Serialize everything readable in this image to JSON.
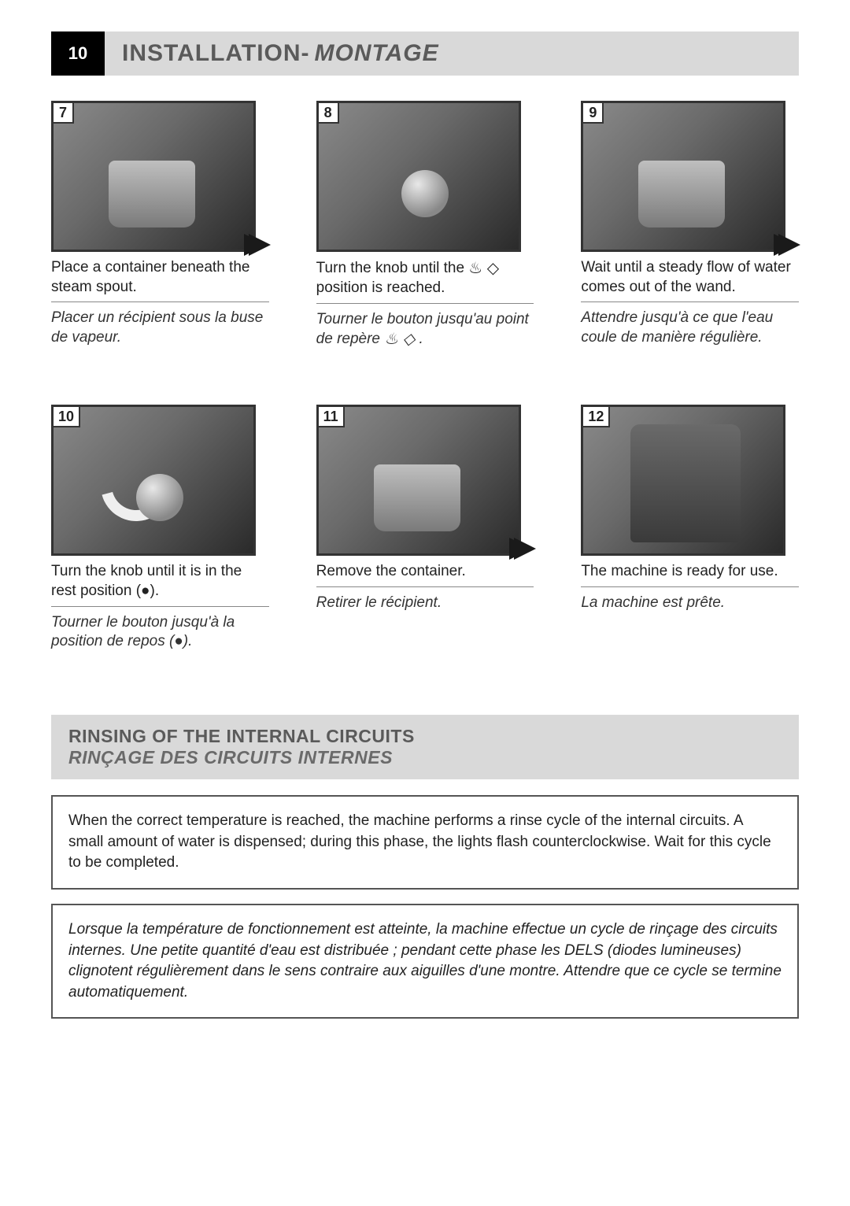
{
  "header": {
    "page_number": "10",
    "title_en": "INSTALLATION",
    "title_sep": " - ",
    "title_fr": "MONTAGE"
  },
  "steps": [
    {
      "num": "7",
      "arrow_out": true,
      "photo_class": "photo-cup",
      "en": "Place a container beneath the steam spout.",
      "fr": "Placer un récipient sous la buse de vapeur."
    },
    {
      "num": "8",
      "arrow_out": false,
      "photo_class": "photo-knob",
      "en_pre": "Turn the knob until the ",
      "en_post": " position is reached.",
      "fr_pre": "Tourner le bouton jusqu'au point de repère ",
      "fr_post": ".",
      "icon": "♨ ◇"
    },
    {
      "num": "9",
      "arrow_out": true,
      "photo_class": "photo-cup",
      "en": "Wait until a steady flow of water comes out of the wand.",
      "fr": "Attendre jusqu'à ce que l'eau coule de manière régulière."
    },
    {
      "num": "10",
      "arrow_out": false,
      "arrow_curve": true,
      "photo_class": "photo-knob",
      "en": "Turn the knob until it is in the rest position (●).",
      "fr": "Tourner le bouton jusqu'à la position de repos (●)."
    },
    {
      "num": "11",
      "arrow_out": true,
      "photo_class": "photo-cup",
      "en": "Remove the container.",
      "fr": "Retirer le récipient."
    },
    {
      "num": "12",
      "arrow_out": false,
      "photo_class": "photo-machine",
      "en": "The machine is ready for use.",
      "fr": "La machine est prête."
    }
  ],
  "section": {
    "title_en": "RINSING OF THE INTERNAL CIRCUITS",
    "title_fr": "RINÇAGE DES CIRCUITS INTERNES"
  },
  "box_en": "When the correct temperature is reached, the machine performs a rinse cycle of the internal circuits. A small amount of water is dispensed; during this phase, the lights flash counterclockwise. Wait for this cycle to be completed.",
  "box_fr": "Lorsque la température de fonctionnement est atteinte, la machine effectue un cycle de rinçage des circuits internes. Une petite quantité d'eau est distribuée ; pendant cette phase les DELS (diodes lumineuses) clignotent régulièrement dans le sens contraire aux aiguilles d'une montre. Attendre que ce cycle se termine automatiquement.",
  "styling": {
    "page_bg": "#ffffff",
    "header_bg": "#d9d9d9",
    "pagenum_bg": "#000000",
    "pagenum_fg": "#ffffff",
    "heading_fg": "#5a5a5a",
    "body_fg": "#222222",
    "border_color": "#555555",
    "font_body_pt": 14,
    "font_heading_pt": 22
  }
}
